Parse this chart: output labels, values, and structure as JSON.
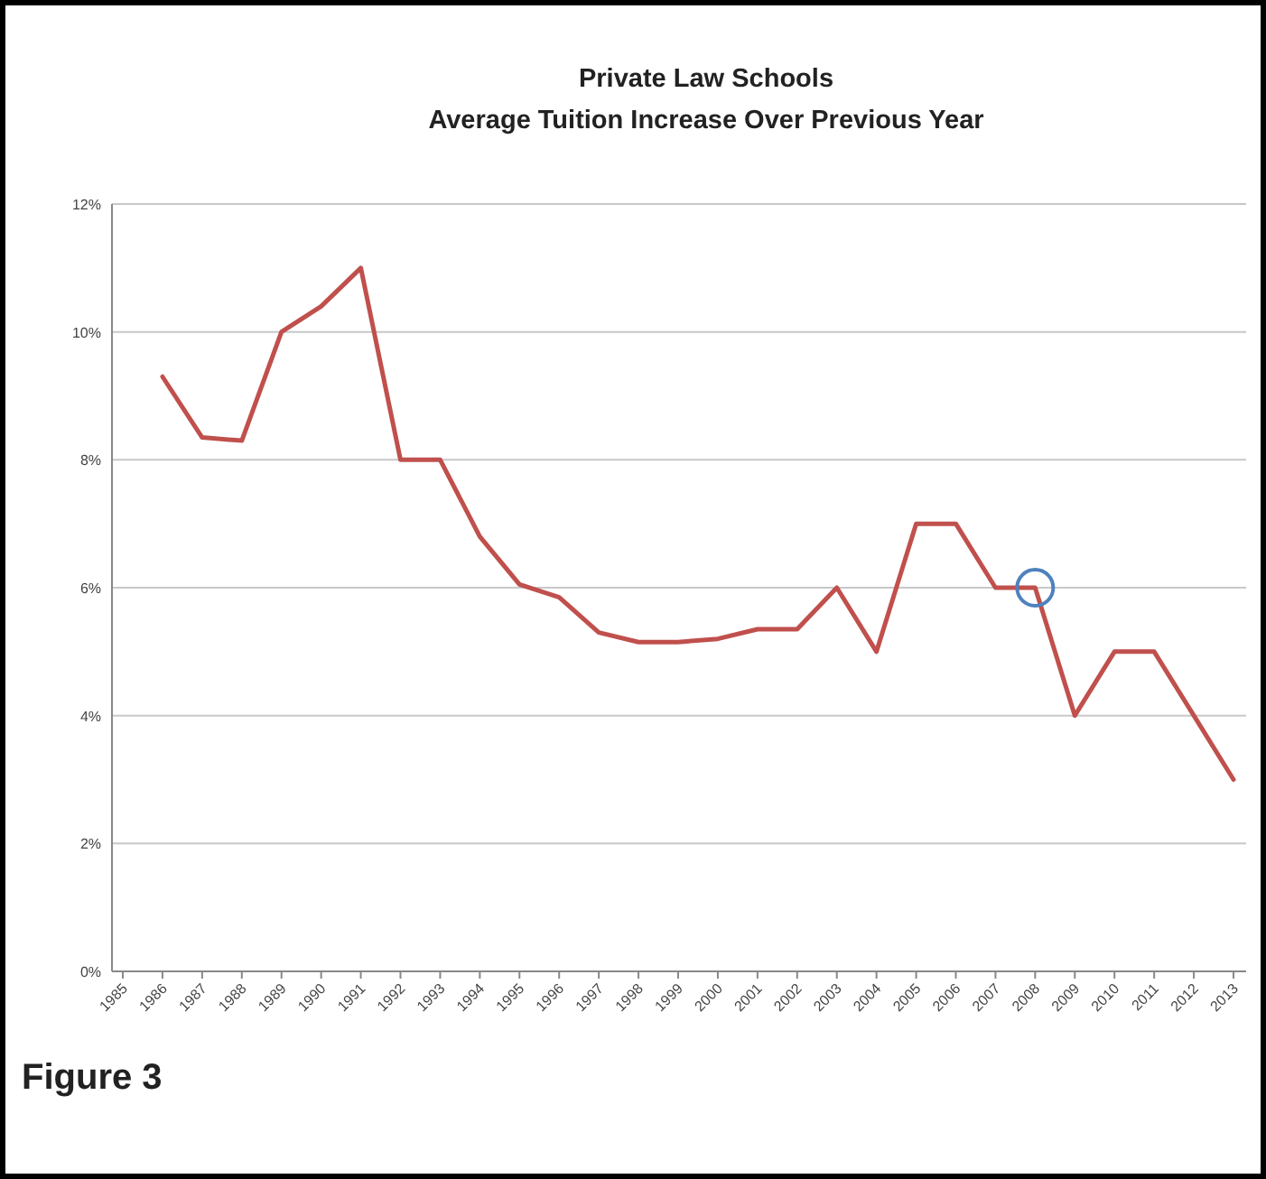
{
  "chart_data": {
    "type": "line",
    "title": "Private Law Schools\nAverage Tuition Increase Over Previous Year",
    "categories": [
      "1985",
      "1986",
      "1987",
      "1988",
      "1989",
      "1990",
      "1991",
      "1992",
      "1993",
      "1994",
      "1995",
      "1996",
      "1997",
      "1998",
      "1999",
      "2000",
      "2001",
      "2002",
      "2003",
      "2004",
      "2005",
      "2006",
      "2007",
      "2008",
      "2009",
      "2010",
      "2011",
      "2012",
      "2013"
    ],
    "series": [
      {
        "color": "#c0504d",
        "values": [
          null,
          9.3,
          8.35,
          8.3,
          10,
          10.4,
          11,
          8,
          8,
          6.8,
          6.05,
          5.85,
          5.3,
          5.15,
          5.15,
          5.2,
          5.35,
          5.35,
          6,
          5,
          7,
          7,
          6,
          6,
          4,
          5,
          5,
          4,
          3
        ]
      },
      {
        "type": "scatter",
        "color": "#4f81bd",
        "marker": "circle",
        "values": [
          null,
          null,
          null,
          null,
          null,
          null,
          null,
          null,
          null,
          null,
          null,
          null,
          null,
          null,
          null,
          null,
          null,
          null,
          null,
          null,
          null,
          null,
          null,
          6,
          null,
          null,
          null,
          null,
          null
        ]
      }
    ],
    "ylim": [
      0,
      12
    ],
    "yticks": [
      {
        "value": 0,
        "label": "0%"
      },
      {
        "value": 2,
        "label": "2%"
      },
      {
        "value": 4,
        "label": "4%"
      },
      {
        "value": 6,
        "label": "6%"
      },
      {
        "value": 8,
        "label": "8%"
      },
      {
        "value": 10,
        "label": "10%"
      },
      {
        "value": 12,
        "label": "12%"
      }
    ],
    "grid": "y",
    "annotations": [
      "Figure 3"
    ]
  }
}
